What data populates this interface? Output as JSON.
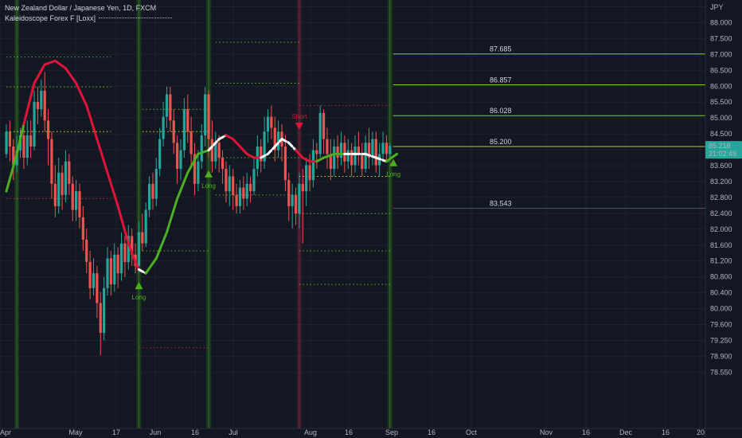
{
  "header": {
    "title": "New Zealand Dollar / Japanese Yen, 1D, FXCM",
    "indicator": "Kaleidoscope Forex F [Loxx]"
  },
  "colors": {
    "background": "#131722",
    "up": "#26a69a",
    "down": "#ef5350",
    "bull_line": "#4caf1f",
    "bear_line": "#e0133a",
    "neutral_line": "#ffffff",
    "price_badge": "#26a69a",
    "level_up": "#7ed321",
    "level_down": "#c2185b",
    "dotted_level": "#cddc39"
  },
  "chart_data": {
    "type": "candlestick",
    "title": "New Zealand Dollar / Japanese Yen, 1D, FXCM",
    "currency": "JPY",
    "x_ticks": [
      "Apr",
      "May",
      "17",
      "Jun",
      "16",
      "Jul",
      "Aug",
      "16",
      "Sep",
      "16",
      "Oct",
      "Nov",
      "16",
      "Dec",
      "16",
      "20"
    ],
    "y_ticks": [
      "88.500",
      "88.000",
      "87.500",
      "87.000",
      "86.500",
      "86.000",
      "85.500",
      "85.000",
      "84.500",
      "84.000",
      "83.600",
      "83.200",
      "82.800",
      "82.400",
      "82.000",
      "81.600",
      "81.200",
      "80.800",
      "80.400",
      "80.000",
      "79.600",
      "79.250",
      "78.900",
      "78.550"
    ],
    "last_price": "85.218",
    "countdown": "21:02:49",
    "levels": [
      {
        "value": 87.685,
        "label": "87.685",
        "kind": "resistance"
      },
      {
        "value": 86.857,
        "label": "86.857",
        "kind": "resistance"
      },
      {
        "value": 86.028,
        "label": "86.028",
        "kind": "resistance"
      },
      {
        "value": 85.2,
        "label": "85.200",
        "kind": "pivot"
      },
      {
        "value": 83.543,
        "label": "83.543",
        "kind": "support"
      }
    ],
    "signals": [
      {
        "label": "Long",
        "type": "long",
        "day": 38,
        "value": 81.5
      },
      {
        "label": "Long",
        "type": "long",
        "day": 58,
        "value": 84.5
      },
      {
        "label": "Short",
        "type": "short",
        "day": 84,
        "value": 85.8
      },
      {
        "label": "Long",
        "type": "long",
        "day": 111,
        "value": 84.8
      }
    ],
    "highlight_days": [
      3,
      38,
      58,
      84,
      110
    ],
    "candles": [
      [
        85.0,
        85.6,
        85.8,
        84.9
      ],
      [
        85.6,
        85.2,
        85.9,
        84.8
      ],
      [
        85.2,
        84.7,
        85.4,
        84.3
      ],
      [
        84.7,
        85.1,
        85.5,
        84.5
      ],
      [
        85.1,
        85.5,
        85.7,
        84.9
      ],
      [
        85.5,
        84.9,
        85.8,
        84.6
      ],
      [
        84.9,
        85.5,
        85.9,
        84.7
      ],
      [
        85.5,
        85.2,
        85.9,
        84.9
      ],
      [
        85.2,
        86.4,
        86.7,
        85.1
      ],
      [
        86.4,
        86.2,
        86.8,
        85.8
      ],
      [
        86.2,
        86.7,
        87.0,
        86.0
      ],
      [
        86.7,
        85.9,
        87.2,
        85.6
      ],
      [
        85.9,
        85.4,
        86.2,
        84.7
      ],
      [
        85.4,
        84.2,
        85.6,
        83.8
      ],
      [
        84.2,
        83.6,
        84.7,
        83.3
      ],
      [
        83.6,
        84.5,
        84.9,
        83.4
      ],
      [
        84.5,
        83.9,
        84.7,
        83.5
      ],
      [
        83.9,
        84.8,
        85.1,
        83.7
      ],
      [
        84.8,
        84.2,
        85.0,
        83.9
      ],
      [
        84.2,
        83.5,
        84.4,
        83.2
      ],
      [
        83.5,
        84.0,
        84.3,
        83.2
      ],
      [
        84.0,
        83.3,
        84.2,
        83.0
      ],
      [
        83.3,
        82.7,
        83.6,
        82.4
      ],
      [
        82.7,
        82.1,
        83.0,
        81.8
      ],
      [
        82.1,
        81.4,
        82.4,
        81.1
      ],
      [
        81.4,
        81.8,
        82.2,
        81.2
      ],
      [
        81.8,
        81.0,
        82.0,
        80.6
      ],
      [
        81.0,
        80.2,
        81.3,
        79.6
      ],
      [
        80.2,
        81.4,
        81.7,
        80.0
      ],
      [
        81.4,
        82.2,
        82.5,
        81.2
      ],
      [
        82.2,
        81.5,
        82.4,
        81.2
      ],
      [
        81.5,
        82.3,
        82.6,
        81.3
      ],
      [
        82.3,
        81.8,
        82.5,
        81.4
      ],
      [
        81.8,
        82.6,
        82.9,
        81.6
      ],
      [
        82.6,
        82.1,
        82.8,
        81.7
      ],
      [
        82.1,
        82.8,
        83.1,
        81.9
      ],
      [
        82.8,
        82.3,
        83.0,
        82.0
      ],
      [
        82.3,
        82.0,
        82.6,
        81.8
      ],
      [
        82.0,
        82.9,
        83.2,
        81.8
      ],
      [
        82.9,
        82.6,
        83.4,
        82.4
      ],
      [
        82.6,
        83.5,
        83.7,
        82.5
      ],
      [
        83.5,
        84.2,
        84.4,
        83.3
      ],
      [
        84.2,
        83.8,
        84.5,
        83.5
      ],
      [
        83.8,
        84.6,
        84.9,
        83.6
      ],
      [
        84.6,
        85.4,
        85.7,
        84.4
      ],
      [
        85.4,
        86.0,
        86.4,
        85.2
      ],
      [
        86.0,
        86.6,
        86.8,
        85.7
      ],
      [
        86.6,
        85.9,
        86.8,
        85.6
      ],
      [
        85.9,
        85.3,
        86.2,
        85.0
      ],
      [
        85.3,
        84.6,
        85.5,
        84.2
      ],
      [
        84.6,
        85.1,
        85.4,
        84.3
      ],
      [
        85.1,
        86.2,
        86.5,
        84.9
      ],
      [
        86.2,
        85.6,
        86.6,
        85.3
      ],
      [
        85.6,
        85.0,
        86.0,
        84.7
      ],
      [
        85.0,
        84.2,
        85.3,
        83.9
      ],
      [
        84.2,
        84.8,
        85.1,
        84.0
      ],
      [
        84.8,
        85.5,
        85.8,
        84.6
      ],
      [
        85.5,
        86.6,
        86.8,
        85.2
      ],
      [
        86.6,
        85.4,
        86.7,
        84.9
      ],
      [
        85.4,
        84.8,
        85.9,
        84.5
      ],
      [
        84.8,
        85.3,
        85.6,
        84.6
      ],
      [
        85.3,
        84.9,
        85.5,
        84.5
      ],
      [
        84.9,
        84.6,
        85.1,
        84.2
      ],
      [
        84.6,
        84.0,
        84.8,
        83.7
      ],
      [
        84.0,
        84.4,
        84.7,
        83.6
      ],
      [
        84.4,
        83.9,
        84.6,
        83.5
      ],
      [
        83.9,
        83.6,
        84.2,
        83.4
      ],
      [
        83.6,
        84.1,
        84.3,
        83.4
      ],
      [
        84.1,
        83.8,
        84.4,
        83.5
      ],
      [
        83.8,
        84.2,
        84.5,
        83.6
      ],
      [
        84.2,
        84.0,
        84.4,
        83.7
      ],
      [
        84.0,
        84.6,
        84.9,
        83.9
      ],
      [
        84.6,
        85.2,
        85.5,
        84.4
      ],
      [
        85.2,
        84.8,
        85.4,
        84.5
      ],
      [
        84.8,
        85.6,
        86.0,
        84.6
      ],
      [
        85.6,
        86.0,
        86.2,
        85.3
      ],
      [
        86.0,
        85.7,
        86.3,
        85.4
      ],
      [
        85.7,
        85.1,
        86.0,
        84.8
      ],
      [
        85.1,
        85.6,
        85.9,
        84.9
      ],
      [
        85.6,
        85.2,
        85.8,
        84.8
      ],
      [
        85.2,
        84.3,
        85.5,
        84.0
      ],
      [
        84.3,
        83.6,
        84.5,
        83.2
      ],
      [
        83.6,
        83.9,
        84.2,
        83.0
      ],
      [
        83.9,
        83.4,
        84.1,
        83.1
      ],
      [
        83.4,
        84.2,
        84.5,
        83.0
      ],
      [
        84.2,
        84.0,
        84.6,
        82.6
      ],
      [
        84.0,
        84.7,
        84.9,
        83.6
      ],
      [
        84.7,
        84.3,
        85.0,
        84.0
      ],
      [
        84.3,
        85.1,
        85.4,
        84.1
      ],
      [
        85.1,
        85.0,
        85.3,
        84.6
      ],
      [
        85.0,
        86.1,
        86.3,
        84.9
      ],
      [
        86.1,
        85.4,
        86.2,
        85.0
      ],
      [
        85.4,
        85.0,
        85.7,
        84.6
      ],
      [
        85.0,
        84.6,
        85.4,
        84.3
      ],
      [
        84.6,
        85.2,
        85.4,
        84.4
      ],
      [
        85.2,
        84.9,
        85.5,
        84.6
      ],
      [
        84.9,
        85.3,
        85.6,
        84.7
      ],
      [
        85.3,
        84.8,
        85.5,
        84.5
      ],
      [
        84.8,
        85.1,
        85.4,
        84.6
      ],
      [
        85.1,
        84.7,
        85.3,
        84.4
      ],
      [
        84.7,
        85.2,
        85.5,
        84.5
      ],
      [
        85.2,
        85.0,
        85.6,
        84.7
      ],
      [
        85.0,
        84.6,
        85.3,
        84.4
      ],
      [
        84.6,
        85.3,
        85.5,
        84.5
      ],
      [
        85.3,
        84.9,
        85.7,
        84.6
      ],
      [
        84.9,
        85.4,
        85.6,
        84.7
      ],
      [
        85.4,
        84.7,
        85.6,
        84.5
      ],
      [
        84.7,
        85.0,
        85.3,
        84.4
      ],
      [
        85.0,
        85.3,
        85.6,
        84.8
      ],
      [
        85.3,
        85.0,
        85.5,
        84.8
      ],
      [
        85.0,
        85.218,
        85.3,
        84.9
      ]
    ],
    "trend_line": [
      [
        0,
        84.0
      ],
      [
        3,
        85.0
      ],
      [
        5,
        85.8
      ],
      [
        8,
        86.9
      ],
      [
        11,
        87.4
      ],
      [
        14,
        87.5
      ],
      [
        17,
        87.3
      ],
      [
        20,
        86.9
      ],
      [
        23,
        86.3
      ],
      [
        26,
        85.4
      ],
      [
        29,
        84.5
      ],
      [
        32,
        83.6
      ],
      [
        35,
        82.6
      ],
      [
        37,
        82.1
      ],
      [
        38,
        81.9
      ],
      [
        40,
        81.8
      ],
      [
        43,
        82.2
      ],
      [
        46,
        82.9
      ],
      [
        49,
        83.8
      ],
      [
        52,
        84.5
      ],
      [
        55,
        85.0
      ],
      [
        58,
        85.1
      ],
      [
        61,
        85.4
      ],
      [
        63,
        85.5
      ],
      [
        65,
        85.4
      ],
      [
        67,
        85.2
      ],
      [
        69,
        85.0
      ],
      [
        71,
        84.9
      ],
      [
        73,
        84.9
      ],
      [
        75,
        85.0
      ],
      [
        77,
        85.2
      ],
      [
        79,
        85.4
      ],
      [
        81,
        85.3
      ],
      [
        83,
        85.1
      ],
      [
        85,
        84.9
      ],
      [
        87,
        84.8
      ],
      [
        89,
        84.8
      ],
      [
        91,
        84.9
      ],
      [
        94,
        85.0
      ],
      [
        97,
        85.0
      ],
      [
        100,
        85.0
      ],
      [
        103,
        85.0
      ],
      [
        106,
        84.9
      ],
      [
        109,
        84.8
      ],
      [
        112,
        85.0
      ]
    ],
    "trend_colors": [
      "bull",
      "bull",
      "bear",
      "bear",
      "bear",
      "bear",
      "bear",
      "bear",
      "bear",
      "bear",
      "bear",
      "bear",
      "bear",
      "bear",
      "neutral",
      "bull",
      "bull",
      "bull",
      "bull",
      "bull",
      "bull",
      "neutral",
      "neutral",
      "bear",
      "bear",
      "bear",
      "bear",
      "bear",
      "neutral",
      "neutral",
      "neutral",
      "neutral",
      "neutral",
      "bear",
      "bear",
      "bear",
      "bull",
      "bull",
      "bull",
      "neutral",
      "neutral",
      "neutral",
      "neutral",
      "bull",
      "bull"
    ],
    "dotted_levels": [
      {
        "from": 0,
        "to": 30,
        "value": 87.6,
        "tone": "up"
      },
      {
        "from": 0,
        "to": 30,
        "value": 86.8,
        "tone": "up"
      },
      {
        "from": 0,
        "to": 30,
        "value": 85.6,
        "tone": "neutral"
      },
      {
        "from": 0,
        "to": 30,
        "value": 83.8,
        "tone": "down"
      },
      {
        "from": 39,
        "to": 58,
        "value": 86.2,
        "tone": "up"
      },
      {
        "from": 39,
        "to": 58,
        "value": 85.6,
        "tone": "neutral"
      },
      {
        "from": 39,
        "to": 58,
        "value": 82.4,
        "tone": "up"
      },
      {
        "from": 38,
        "to": 58,
        "value": 79.8,
        "tone": "down"
      },
      {
        "from": 60,
        "to": 84,
        "value": 88.0,
        "tone": "up"
      },
      {
        "from": 60,
        "to": 84,
        "value": 86.9,
        "tone": "up"
      },
      {
        "from": 60,
        "to": 84,
        "value": 84.9,
        "tone": "up"
      },
      {
        "from": 60,
        "to": 84,
        "value": 83.9,
        "tone": "up"
      },
      {
        "from": 84,
        "to": 110,
        "value": 86.3,
        "tone": "down"
      },
      {
        "from": 84,
        "to": 110,
        "value": 84.4,
        "tone": "neutral"
      },
      {
        "from": 84,
        "to": 110,
        "value": 83.4,
        "tone": "up"
      },
      {
        "from": 84,
        "to": 110,
        "value": 82.4,
        "tone": "up"
      },
      {
        "from": 84,
        "to": 110,
        "value": 81.5,
        "tone": "up"
      }
    ]
  }
}
